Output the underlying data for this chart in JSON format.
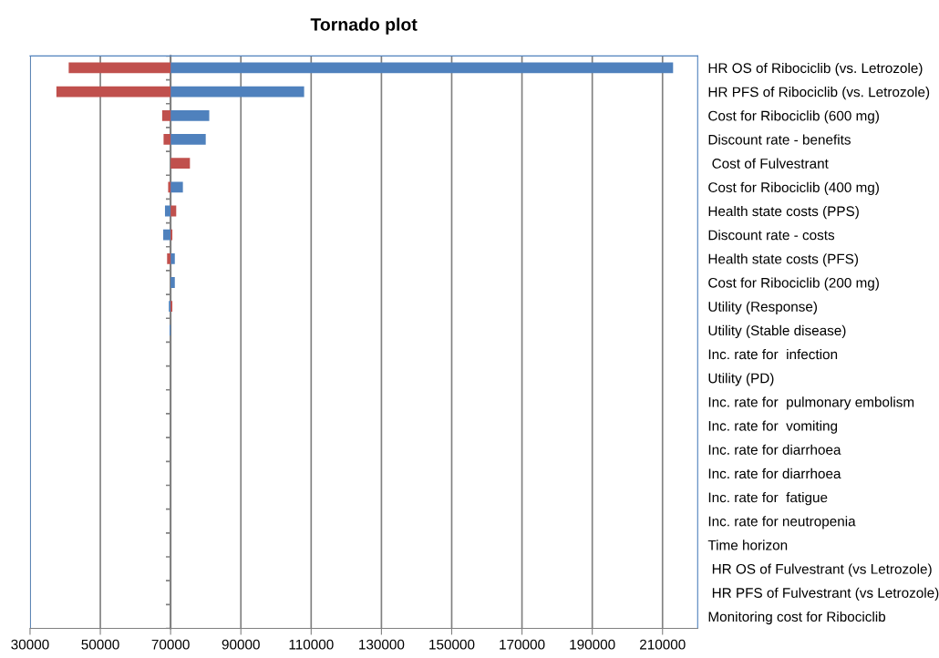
{
  "chart_data": {
    "type": "bar",
    "orientation": "horizontal",
    "title": "Tornado plot",
    "categories": [
      "HR OS of Ribociclib (vs. Letrozole)",
      "HR PFS of Ribociclib (vs. Letrozole)",
      "Cost for Ribociclib (600 mg)",
      "Discount rate - benefits",
      " Cost of Fulvestrant",
      "Cost for Ribociclib (400 mg)",
      "Health state costs (PPS)",
      "Discount rate - costs",
      "Health state costs (PFS)",
      "Cost for Ribociclib (200 mg)",
      "Utility (Response)",
      "Utility (Stable disease)",
      "Inc. rate for  infection",
      "Utility (PD)",
      "Inc. rate for  pulmonary embolism",
      "Inc. rate for  vomiting",
      "Inc. rate for diarrhoea",
      "Inc. rate for diarrhoea",
      "Inc. rate for  fatigue",
      "Inc. rate for neutropenia",
      "Time horizon",
      " HR OS of Fulvestrant (vs Letrozole)",
      " HR PFS of Fulvestrant (vs Letrozole)",
      "Monitoring cost for Ribociclib"
    ],
    "series": [
      {
        "color": "#4f81bd",
        "base": [
          70000,
          70000,
          70000,
          70000,
          null,
          70000,
          70000,
          70000,
          70000,
          70000,
          70000,
          70000,
          null,
          null,
          null,
          null,
          null,
          null,
          null,
          null,
          null,
          null,
          null,
          null
        ],
        "values": [
          143000,
          38000,
          11000,
          10000,
          null,
          3500,
          -1600,
          -2100,
          1200,
          1200,
          -500,
          -300,
          null,
          null,
          null,
          null,
          null,
          null,
          null,
          null,
          null,
          null,
          null,
          null
        ]
      },
      {
        "color": "#c0504d",
        "base": [
          70000,
          70000,
          70000,
          70000,
          70000,
          70000,
          70000,
          70000,
          70000,
          null,
          70000,
          null,
          null,
          null,
          null,
          null,
          null,
          null,
          null,
          null,
          null,
          null,
          null,
          null
        ],
        "values": [
          -29000,
          -32500,
          -2400,
          -2000,
          5500,
          -700,
          1600,
          500,
          -1000,
          null,
          500,
          null,
          null,
          null,
          null,
          null,
          null,
          null,
          null,
          null,
          null,
          null,
          null,
          null
        ]
      }
    ],
    "xlim": [
      30000,
      220000
    ],
    "xticks": [
      30000,
      50000,
      70000,
      90000,
      110000,
      130000,
      150000,
      170000,
      190000,
      210000
    ],
    "ref_lines": [
      {
        "axis": "x",
        "value": 70000,
        "color": "#808080"
      }
    ],
    "grid": "x",
    "legend": false
  }
}
